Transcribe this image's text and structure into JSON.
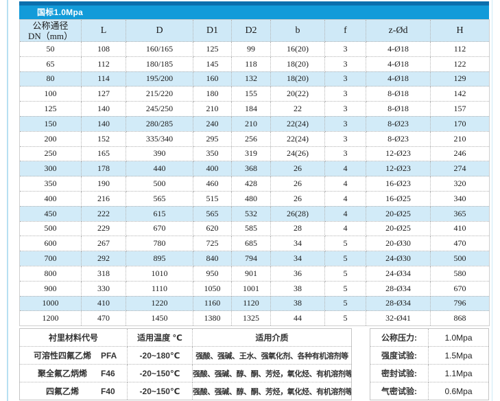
{
  "title": "国标1.0Mpa",
  "colors": {
    "top_strip": "#0b6fad",
    "title_bar": "#129bd9",
    "header_bg": "#cfe9f7",
    "highlight_row_bg": "#d2ebf8",
    "page_edge": "#b7e0f2"
  },
  "main_table": {
    "columns": [
      "公称通径\nDN（mm）",
      "L",
      "D",
      "D1",
      "D2",
      "b",
      "f",
      "z-Ød",
      "H"
    ],
    "rows": [
      [
        "50",
        "108",
        "160/165",
        "125",
        "99",
        "16(20)",
        "3",
        "4-Ø18",
        "112"
      ],
      [
        "65",
        "112",
        "180/185",
        "145",
        "118",
        "18(20)",
        "3",
        "4-Ø18",
        "122"
      ],
      [
        "80",
        "114",
        "195/200",
        "160",
        "132",
        "18(20)",
        "3",
        "4-Ø18",
        "129"
      ],
      [
        "100",
        "127",
        "215/220",
        "180",
        "155",
        "20(22)",
        "3",
        "8-Ø18",
        "142"
      ],
      [
        "125",
        "140",
        "245/250",
        "210",
        "184",
        "22",
        "3",
        "8-Ø18",
        "157"
      ],
      [
        "150",
        "140",
        "280/285",
        "240",
        "210",
        "22(24)",
        "3",
        "8-Ø23",
        "170"
      ],
      [
        "200",
        "152",
        "335/340",
        "295",
        "256",
        "22(24)",
        "3",
        "8-Ø23",
        "210"
      ],
      [
        "250",
        "165",
        "390",
        "350",
        "319",
        "24(26)",
        "3",
        "12-Ø23",
        "246"
      ],
      [
        "300",
        "178",
        "440",
        "400",
        "368",
        "26",
        "4",
        "12-Ø23",
        "274"
      ],
      [
        "350",
        "190",
        "500",
        "460",
        "428",
        "26",
        "4",
        "16-Ø23",
        "320"
      ],
      [
        "400",
        "216",
        "565",
        "515",
        "480",
        "26",
        "4",
        "16-Ø25",
        "340"
      ],
      [
        "450",
        "222",
        "615",
        "565",
        "532",
        "26(28)",
        "4",
        "20-Ø25",
        "365"
      ],
      [
        "500",
        "229",
        "670",
        "620",
        "585",
        "28",
        "4",
        "20-Ø25",
        "410"
      ],
      [
        "600",
        "267",
        "780",
        "725",
        "685",
        "34",
        "5",
        "20-Ø30",
        "470"
      ],
      [
        "700",
        "292",
        "895",
        "840",
        "794",
        "34",
        "5",
        "24-Ø30",
        "500"
      ],
      [
        "800",
        "318",
        "1010",
        "950",
        "901",
        "36",
        "5",
        "24-Ø34",
        "580"
      ],
      [
        "900",
        "330",
        "1110",
        "1050",
        "1001",
        "38",
        "5",
        "28-Ø34",
        "670"
      ],
      [
        "1000",
        "410",
        "1220",
        "1160",
        "1120",
        "38",
        "5",
        "28-Ø34",
        "796"
      ],
      [
        "1200",
        "470",
        "1450",
        "1380",
        "1325",
        "44",
        "5",
        "32-Ø41",
        "868"
      ]
    ],
    "highlighted_rows": [
      2,
      5,
      8,
      11,
      14,
      17
    ]
  },
  "material_table": {
    "headers": [
      "衬里材料代号",
      "适用温度 ℃",
      "适用介质"
    ],
    "rows": [
      {
        "name": "可溶性四氟乙烯",
        "code": "PFA",
        "temp": "-20~180℃",
        "media": "强酸、强碱、王水、强氧化剂、各种有机溶剂等"
      },
      {
        "name": "聚全氟乙炳烯",
        "code": "F46",
        "temp": "-20~150℃",
        "media": "强酸、强碱、醇、酮、芳烃，氧化烃、有机溶剂等"
      },
      {
        "name": "四氟乙烯",
        "code": "F40",
        "temp": "-20~150℃",
        "media": "强酸、强碱、醇、酮、芳烃，氧化烃、有机溶剂等"
      }
    ]
  },
  "pressure_table": {
    "rows": [
      {
        "label": "公称压力:",
        "value": "1.0Mpa"
      },
      {
        "label": "强度试验:",
        "value": "1.5Mpa"
      },
      {
        "label": "密封试验:",
        "value": "1.1Mpa"
      },
      {
        "label": "气密试验:",
        "value": "0.6Mpa"
      }
    ]
  }
}
